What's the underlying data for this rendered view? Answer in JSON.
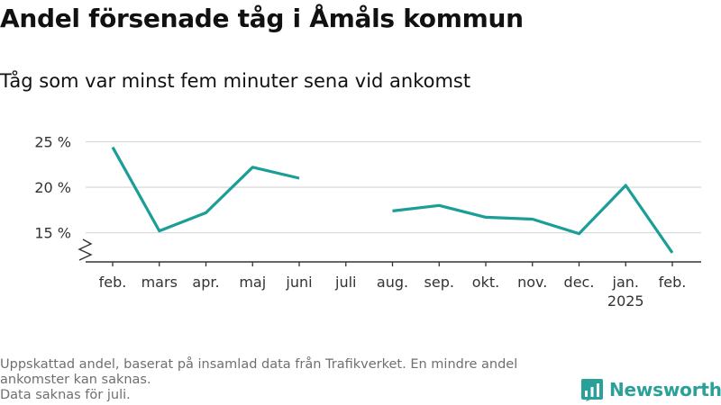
{
  "title": "Andel försenade tåg i Åmåls kommun",
  "subtitle": "Tåg som var minst fem minuter sena vid ankomst",
  "footnotes": [
    "Uppskattad andel, baserat på insamlad data från Trafikverket. En mindre andel ankomster kan saknas.",
    "Data saknas för juli."
  ],
  "brand": {
    "name": "Newsworthy",
    "icon": "bar-chart-logo-icon",
    "color": "#2aa198"
  },
  "chart_data": {
    "type": "line",
    "categories": [
      "feb.",
      "mars",
      "apr.",
      "maj",
      "juni",
      "juli",
      "aug.",
      "sep.",
      "okt.",
      "nov.",
      "dec.",
      "jan.",
      "feb."
    ],
    "year_label": {
      "category_index": 11,
      "text": "2025"
    },
    "series": [
      {
        "color": "#1a9e96",
        "values": [
          24.4,
          15.2,
          17.2,
          22.2,
          21.0,
          null,
          17.4,
          18.0,
          16.7,
          16.5,
          14.9,
          20.2,
          12.8
        ]
      }
    ],
    "y_ticks": [
      15,
      20,
      25
    ],
    "y_tick_labels": [
      "15 %",
      "20 %",
      "25 %"
    ],
    "ylim": [
      11.8,
      25
    ],
    "axis_break": true,
    "grid": true,
    "legend": "none"
  }
}
